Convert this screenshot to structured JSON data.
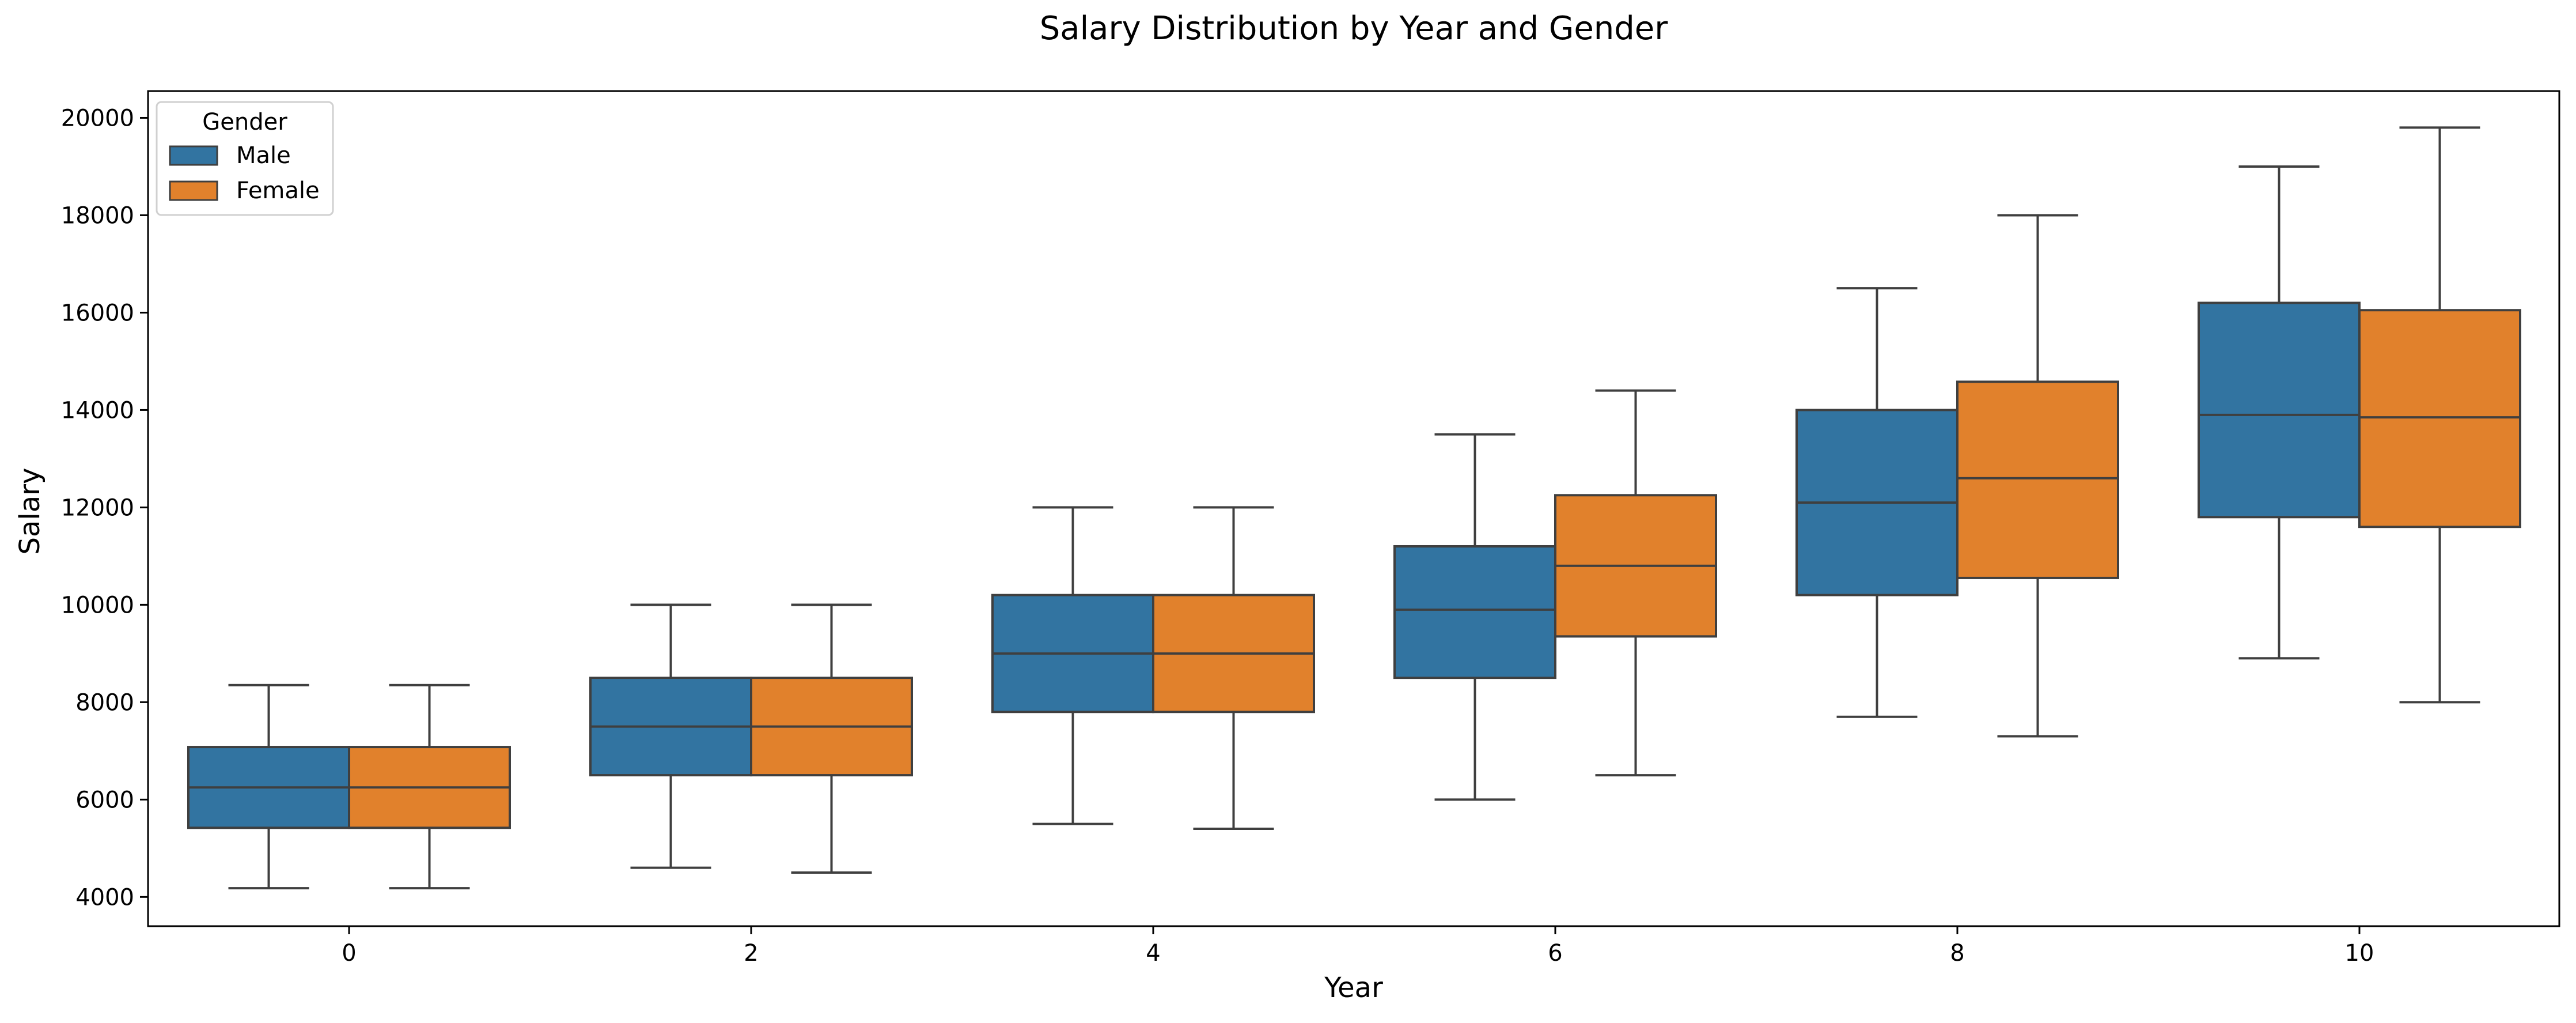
{
  "chart_data": {
    "type": "box",
    "title": "Salary Distribution by Year and Gender",
    "xlabel": "Year",
    "ylabel": "Salary",
    "ylim": [
      3400,
      20550
    ],
    "yticks": [
      4000,
      6000,
      8000,
      10000,
      12000,
      14000,
      16000,
      18000,
      20000
    ],
    "categories": [
      "0",
      "2",
      "4",
      "6",
      "8",
      "10"
    ],
    "grid": false,
    "legend": {
      "title": "Gender",
      "placement": "upper-left"
    },
    "series": [
      {
        "name": "Male",
        "color": "#3274a1",
        "boxes": [
          {
            "category": "0",
            "whisker_low": 4180,
            "q1": 5420,
            "median": 6250,
            "q3": 7080,
            "whisker_high": 8350
          },
          {
            "category": "2",
            "whisker_low": 4600,
            "q1": 6500,
            "median": 7500,
            "q3": 8500,
            "whisker_high": 10000
          },
          {
            "category": "4",
            "whisker_low": 5500,
            "q1": 7800,
            "median": 9000,
            "q3": 10200,
            "whisker_high": 12000
          },
          {
            "category": "6",
            "whisker_low": 6000,
            "q1": 8500,
            "median": 9900,
            "q3": 11200,
            "whisker_high": 13500
          },
          {
            "category": "8",
            "whisker_low": 7700,
            "q1": 10200,
            "median": 12100,
            "q3": 14000,
            "whisker_high": 16500
          },
          {
            "category": "10",
            "whisker_low": 8900,
            "q1": 11800,
            "median": 13900,
            "q3": 16200,
            "whisker_high": 19000
          }
        ]
      },
      {
        "name": "Female",
        "color": "#e1812c",
        "boxes": [
          {
            "category": "0",
            "whisker_low": 4180,
            "q1": 5420,
            "median": 6250,
            "q3": 7080,
            "whisker_high": 8350
          },
          {
            "category": "2",
            "whisker_low": 4500,
            "q1": 6500,
            "median": 7500,
            "q3": 8500,
            "whisker_high": 10000
          },
          {
            "category": "4",
            "whisker_low": 5400,
            "q1": 7800,
            "median": 9000,
            "q3": 10200,
            "whisker_high": 12000
          },
          {
            "category": "6",
            "whisker_low": 6500,
            "q1": 9350,
            "median": 10800,
            "q3": 12250,
            "whisker_high": 14400
          },
          {
            "category": "8",
            "whisker_low": 7300,
            "q1": 10550,
            "median": 12600,
            "q3": 14580,
            "whisker_high": 18000
          },
          {
            "category": "10",
            "whisker_low": 8000,
            "q1": 11600,
            "median": 13850,
            "q3": 16050,
            "whisker_high": 19800
          }
        ]
      }
    ]
  }
}
